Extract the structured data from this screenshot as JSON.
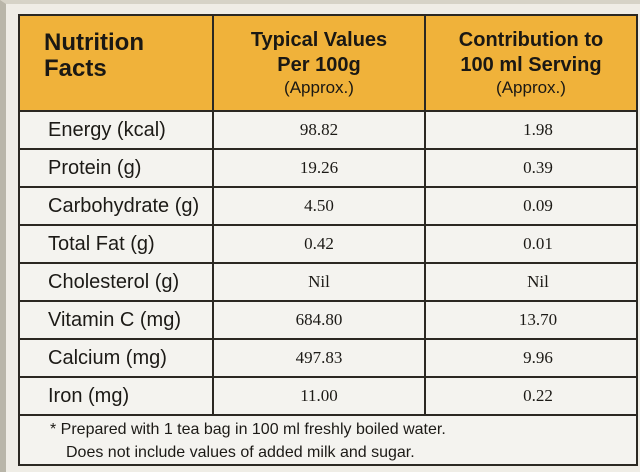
{
  "header": {
    "col1_title": "Nutrition Facts",
    "col2_title_line1": "Typical Values",
    "col2_title_line2": "Per 100g",
    "col2_note": "(Approx.)",
    "col3_title_line1": "Contribution to",
    "col3_title_line2": "100 ml Serving",
    "col3_note": "(Approx.)"
  },
  "rows": [
    {
      "name": "Energy (kcal)",
      "per100g": "98.82",
      "per_serving": "1.98"
    },
    {
      "name": "Protein (g)",
      "per100g": "19.26",
      "per_serving": "0.39"
    },
    {
      "name": "Carbohydrate (g)",
      "per100g": "4.50",
      "per_serving": "0.09"
    },
    {
      "name": "Total Fat (g)",
      "per100g": "0.42",
      "per_serving": "0.01"
    },
    {
      "name": "Cholesterol (g)",
      "per100g": "Nil",
      "per_serving": "Nil"
    },
    {
      "name": "Vitamin C (mg)",
      "per100g": "684.80",
      "per_serving": "13.70"
    },
    {
      "name": "Calcium (mg)",
      "per100g": "497.83",
      "per_serving": "9.96"
    },
    {
      "name": "Iron (mg)",
      "per100g": "11.00",
      "per_serving": "0.22"
    }
  ],
  "footnote": {
    "line1": "* Prepared with 1 tea bag in 100 ml freshly boiled water.",
    "line2": "Does not include values of added milk and sugar."
  },
  "colors": {
    "header_bg": "#f0b23a",
    "border": "#2b2822",
    "body_bg": "#f4f3ef"
  }
}
